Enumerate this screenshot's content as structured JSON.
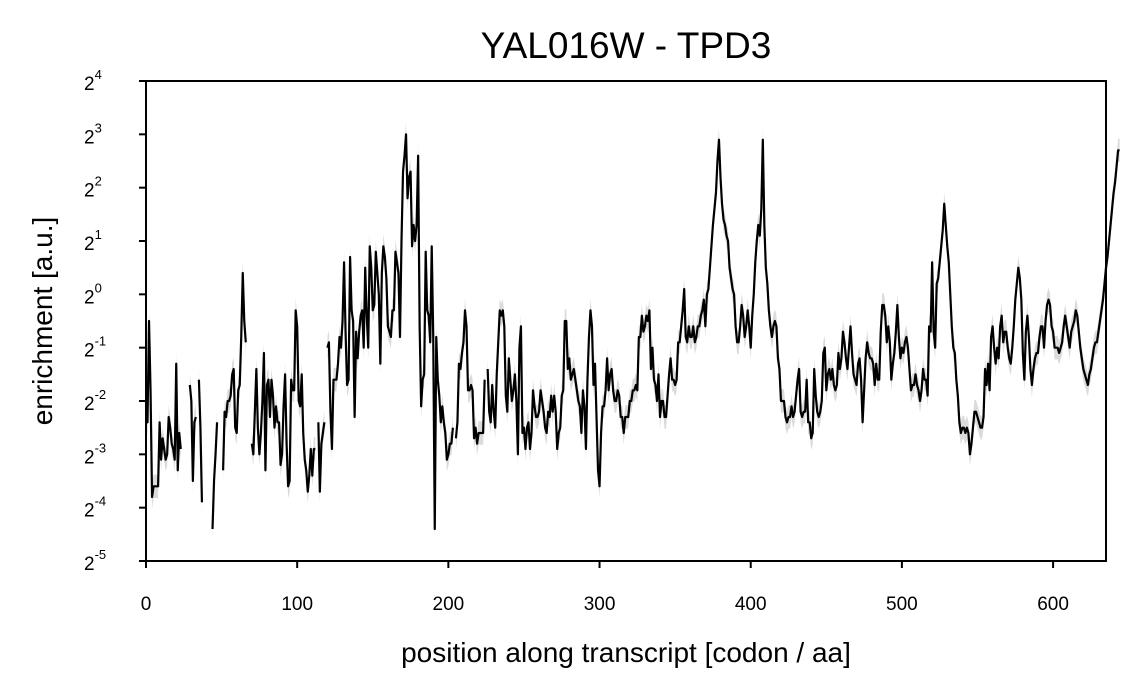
{
  "chart_data": {
    "type": "line",
    "title": "YAL016W - TPD3",
    "xlabel": "position along transcript [codon / aa]",
    "ylabel": "enrichment [a.u.]",
    "xlim": [
      0,
      635
    ],
    "ylim_log2": [
      -5,
      4
    ],
    "y_scale": "log2",
    "x_ticks": [
      0,
      100,
      200,
      300,
      400,
      500,
      600
    ],
    "y_ticks": [
      {
        "base": "2",
        "exp": "-5",
        "value": -5
      },
      {
        "base": "2",
        "exp": "-4",
        "value": -4
      },
      {
        "base": "2",
        "exp": "-3",
        "value": -3
      },
      {
        "base": "2",
        "exp": "-2",
        "value": -2
      },
      {
        "base": "2",
        "exp": "-1",
        "value": -1
      },
      {
        "base": "2",
        "exp": "0",
        "value": 0
      },
      {
        "base": "2",
        "exp": "1",
        "value": 1
      },
      {
        "base": "2",
        "exp": "2",
        "value": 2
      },
      {
        "base": "2",
        "exp": "3",
        "value": 3
      },
      {
        "base": "2",
        "exp": "4",
        "value": 4
      }
    ],
    "grid": false,
    "line_color": "#000000",
    "band_color": "#bdbdbd",
    "series": [
      {
        "y_log2": [
          -2.3,
          -2.4,
          -0.5,
          -1.8,
          -3.8,
          -3.6,
          -3.6,
          -3.6,
          -3.6,
          -2.4,
          -3.1,
          -2.7,
          -2.9,
          -3.1,
          -3.0,
          -2.3,
          -2.5,
          -2.8,
          -2.9,
          -3.1,
          -1.3,
          -3.3,
          -2.6,
          -2.9,
          null,
          null,
          null,
          null,
          null,
          -1.7,
          -2.0,
          -3.5,
          -2.4,
          -2.3,
          null,
          -1.6,
          -2.5,
          -3.9,
          null,
          null,
          null,
          null,
          null,
          null,
          -4.4,
          -3.5,
          -3.0,
          -2.4,
          null,
          null,
          null,
          -3.3,
          -2.2,
          -2.3,
          -2.0,
          -2.0,
          -1.9,
          -1.5,
          -1.4,
          -2.5,
          -2.6,
          -1.8,
          -1.7,
          -0.8,
          0.4,
          -0.5,
          -0.9,
          null,
          null,
          null,
          -2.8,
          -3.0,
          -2.2,
          -1.4,
          -2.5,
          -3.0,
          -2.6,
          -2.0,
          -1.1,
          -3.3,
          -1.7,
          -1.6,
          -2.3,
          -1.6,
          -1.9,
          -2.5,
          -2.1,
          -2.4,
          -2.4,
          -3.2,
          -3.0,
          -2.1,
          -1.5,
          -2.8,
          -3.6,
          -3.5,
          -1.6,
          -1.8,
          -1.8,
          -0.3,
          -0.6,
          -2.0,
          -2.1,
          -1.5,
          -2.6,
          -3.1,
          -3.3,
          -3.7,
          -3.4,
          -2.9,
          -3.4,
          -2.9,
          -2.9,
          null,
          -2.4,
          -3.7,
          -2.8,
          -2.6,
          -2.4,
          null,
          -1.0,
          -0.9,
          -2.2,
          -2.9,
          -1.6,
          -1.6,
          -1.6,
          -1.3,
          -0.8,
          -1.0,
          -0.5,
          0.6,
          -0.7,
          -1.7,
          -1.6,
          0.7,
          -0.3,
          -0.5,
          -2.3,
          -0.7,
          -1.2,
          -0.7,
          -0.4,
          -0.3,
          -1.0,
          0.5,
          -0.4,
          -1.0,
          0.9,
          0.5,
          -0.3,
          -0.2,
          0.8,
          0.4,
          0.0,
          -1.3,
          0.4,
          0.9,
          0.7,
          0.3,
          -0.6,
          -0.7,
          -0.8,
          -0.3,
          -0.3,
          0.8,
          0.6,
          0.4,
          -0.8,
          1.0,
          2.3,
          2.6,
          3.0,
          1.8,
          2.2,
          2.3,
          0.9,
          1.3,
          1.0,
          1.3,
          2.6,
          -0.6,
          -2.1,
          -1.6,
          -1.5,
          0.8,
          -0.3,
          -0.4,
          -0.9,
          0.9,
          -0.8,
          -4.4,
          -0.8,
          -1.6,
          -1.9,
          -2.4,
          -2.1,
          -2.4,
          -2.6,
          -3.1,
          -3.0,
          -2.8,
          -2.8,
          -2.5,
          null,
          -2.7,
          -2.4,
          -1.3,
          -1.4,
          -1.1,
          -0.9,
          -0.3,
          -0.6,
          -1.8,
          -1.8,
          -1.7,
          -1.8,
          -2.7,
          -2.5,
          -2.8,
          -2.6,
          -2.6,
          -2.6,
          -2.6,
          -1.6,
          null,
          -1.4,
          -2.2,
          -2.4,
          -1.7,
          -2.2,
          -2.5,
          -1.5,
          -0.9,
          -0.3,
          -0.4,
          -0.3,
          -0.6,
          -1.9,
          -2.2,
          -1.2,
          -1.6,
          -2.0,
          -1.8,
          -1.5,
          -2.0,
          -3.0,
          -1.0,
          -0.6,
          -2.6,
          -2.5,
          -2.9,
          -2.5,
          -2.4,
          -2.9,
          -2.6,
          -1.8,
          -2.1,
          -2.3,
          -2.3,
          -2.2,
          -1.8,
          -2.0,
          -2.2,
          -2.5,
          -2.6,
          -2.2,
          -2.3,
          -1.9,
          -2.2,
          -1.9,
          -2.2,
          -2.9,
          -2.6,
          -2.5,
          -1.9,
          -1.8,
          -0.5,
          -0.5,
          -1.4,
          -1.2,
          -1.6,
          -1.5,
          -1.4,
          -1.6,
          -1.8,
          -2.0,
          -2.1,
          -2.6,
          -1.8,
          -2.1,
          -2.9,
          -1.6,
          -0.8,
          -0.3,
          -0.6,
          -1.7,
          -1.3,
          -2.3,
          -3.3,
          -3.6,
          -2.6,
          -2.1,
          -2.1,
          -1.8,
          -1.2,
          -1.8,
          -1.5,
          -1.4,
          -1.8,
          -2.0,
          -2.0,
          -1.8,
          -1.9,
          -2.3,
          -2.3,
          -2.6,
          -2.3,
          -2.3,
          -2.3,
          -2.0,
          -2.0,
          -1.8,
          -1.8,
          -1.7,
          -1.8,
          -0.8,
          -0.8,
          -0.4,
          -0.7,
          -0.6,
          -0.4,
          -0.5,
          -0.3,
          -1.4,
          -1.0,
          -1.6,
          -1.7,
          -2.0,
          -1.5,
          -2.3,
          -2.0,
          -2.0,
          -2.3,
          -2.3,
          -1.9,
          -1.5,
          -1.2,
          -1.6,
          -1.6,
          -1.7,
          -1.6,
          -0.9,
          -0.9,
          -0.6,
          -0.3,
          0.1,
          -0.8,
          -0.9,
          -0.6,
          -0.8,
          -0.8,
          -0.6,
          -0.9,
          -0.8,
          -0.6,
          -0.6,
          -0.4,
          -0.3,
          -0.1,
          -0.6,
          0.0,
          0.1,
          0.5,
          0.9,
          1.3,
          1.6,
          1.9,
          2.5,
          2.9,
          2.2,
          1.7,
          1.4,
          1.3,
          1.1,
          1.0,
          0.5,
          0.3,
          0.1,
          0.0,
          -0.6,
          -0.9,
          -0.9,
          -0.6,
          -0.2,
          -0.4,
          -0.8,
          -0.6,
          -0.3,
          -0.6,
          -1.0,
          -0.4,
          0.0,
          0.6,
          1.0,
          1.3,
          1.1,
          1.6,
          2.9,
          1.3,
          0.5,
          0.2,
          -0.3,
          -0.6,
          -0.8,
          -0.6,
          -0.5,
          -0.6,
          -1.2,
          -1.4,
          -2.0,
          -2.0,
          -2.0,
          -2.3,
          -2.4,
          -2.3,
          -2.3,
          -2.1,
          -2.3,
          -2.2,
          -1.9,
          -1.6,
          -1.4,
          -2.2,
          -2.3,
          -2.2,
          -2.2,
          -1.6,
          -2.4,
          -2.4,
          -2.7,
          -2.6,
          -1.4,
          -1.9,
          -2.2,
          -2.3,
          -2.2,
          -2.0,
          -1.1,
          -1.0,
          -1.8,
          -1.5,
          -1.4,
          -1.6,
          -1.4,
          -1.7,
          -1.8,
          -1.7,
          -1.1,
          -1.4,
          -1.2,
          -0.7,
          -0.9,
          -1.2,
          -1.4,
          -1.0,
          -0.6,
          -1.1,
          -1.5,
          -1.6,
          -1.7,
          -1.3,
          -1.2,
          -1.6,
          -2.4,
          -1.8,
          -1.2,
          -0.9,
          -1.1,
          -1.2,
          -1.2,
          -1.3,
          -1.7,
          -1.3,
          -1.6,
          -1.6,
          -0.7,
          -0.2,
          -0.2,
          -0.4,
          -0.9,
          -0.6,
          -0.9,
          -1.6,
          -1.3,
          -1.1,
          -0.7,
          -0.2,
          -0.8,
          -1.2,
          -1.0,
          -1.1,
          -0.9,
          -0.8,
          -1.0,
          -1.4,
          -1.8,
          -1.7,
          -1.7,
          -1.5,
          -1.7,
          -1.8,
          -2.0,
          -1.8,
          -1.4,
          -1.6,
          -1.6,
          -1.9,
          -0.6,
          -0.7,
          0.6,
          -0.7,
          -1.0,
          0.2,
          0.3,
          0.6,
          0.9,
          1.2,
          1.7,
          1.3,
          0.9,
          0.6,
          0.0,
          -0.6,
          -1.0,
          -1.1,
          -1.6,
          -1.9,
          -2.4,
          -2.6,
          -2.5,
          -2.5,
          -2.6,
          -2.5,
          -2.6,
          -3.0,
          -2.8,
          -2.5,
          -2.2,
          -2.2,
          -2.3,
          -2.4,
          -2.5,
          -2.5,
          -2.3,
          -1.4,
          -1.7,
          -1.3,
          -1.8,
          -0.8,
          -0.6,
          -1.0,
          -1.3,
          -1.0,
          -1.2,
          -0.6,
          -0.4,
          -0.9,
          -0.7,
          -0.7,
          -1.0,
          -1.2,
          -1.3,
          -1.0,
          -0.6,
          -0.1,
          0.2,
          0.5,
          0.3,
          -0.1,
          -1.1,
          -1.6,
          -0.7,
          -0.4,
          -0.8,
          -1.4,
          -1.7,
          -1.4,
          -1.2,
          -1.1,
          -1.1,
          -0.8,
          -0.6,
          -0.6,
          -1.0,
          -0.5,
          -0.2,
          -0.1,
          -0.2,
          -0.6,
          -0.7,
          -1.0,
          -1.0,
          -1.0,
          -1.1,
          -1.0,
          -0.9,
          -0.6,
          -0.4,
          -0.6,
          -0.8,
          -1.0,
          -0.7,
          -0.6,
          -0.5,
          -0.3,
          -0.4,
          -0.7,
          -1.0,
          -1.2,
          -1.4,
          -1.5,
          -1.6,
          -1.7,
          -1.5,
          -1.4,
          -1.2,
          -1.0,
          -0.9,
          -0.9,
          -0.7,
          -0.5,
          -0.3,
          -0.1,
          0.2,
          0.5,
          0.7,
          1.0,
          1.3,
          1.6,
          1.9,
          2.1,
          2.4,
          2.7,
          2.7
        ]
      }
    ]
  }
}
